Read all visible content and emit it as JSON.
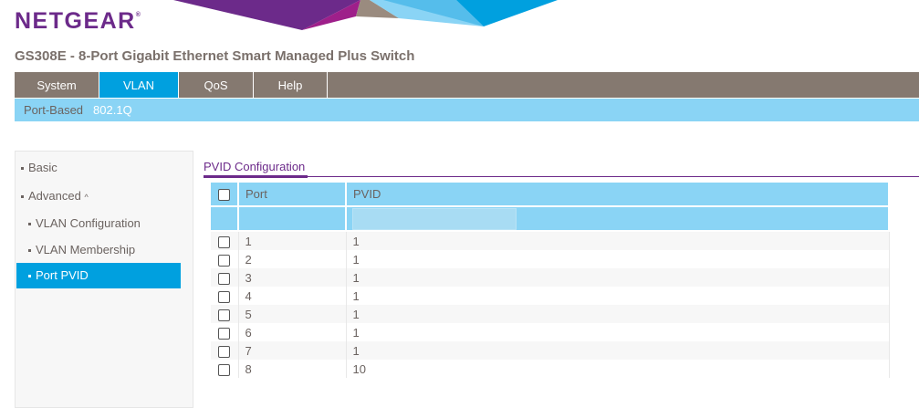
{
  "brand": {
    "logo": "NETGEAR",
    "colors": {
      "purple": "#6c2a8a",
      "blue": "#00a0df",
      "light_blue": "#8ad4f5",
      "grey": "#857970"
    }
  },
  "title": "GS308E - 8-Port Gigabit Ethernet Smart Managed Plus Switch",
  "nav": {
    "tabs": [
      "System",
      "VLAN",
      "QoS",
      "Help"
    ],
    "active": "VLAN"
  },
  "subnav": {
    "items": [
      "Port-Based",
      "802.1Q"
    ],
    "active": "802.1Q"
  },
  "sidebar": {
    "items": [
      {
        "label": "Basic"
      },
      {
        "label": "Advanced",
        "icon": "chevron-up-icon"
      },
      {
        "label": "VLAN Configuration"
      },
      {
        "label": "VLAN Membership"
      },
      {
        "label": "Port PVID",
        "active": true
      }
    ]
  },
  "section": {
    "title": "PVID Configuration"
  },
  "table": {
    "headers": [
      "Port",
      "PVID"
    ],
    "filter_pvid": "",
    "rows": [
      {
        "port": "1",
        "pvid": "1"
      },
      {
        "port": "2",
        "pvid": "1"
      },
      {
        "port": "3",
        "pvid": "1"
      },
      {
        "port": "4",
        "pvid": "1"
      },
      {
        "port": "5",
        "pvid": "1"
      },
      {
        "port": "6",
        "pvid": "1"
      },
      {
        "port": "7",
        "pvid": "1"
      },
      {
        "port": "8",
        "pvid": "10"
      }
    ]
  }
}
